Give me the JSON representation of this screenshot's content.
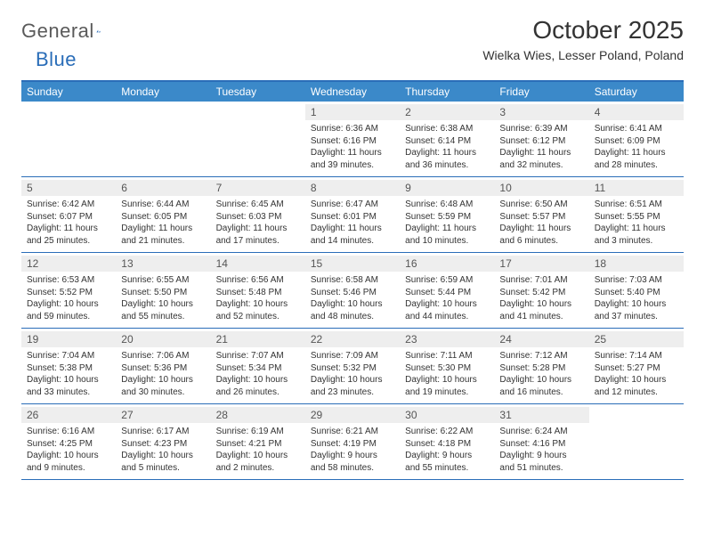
{
  "header": {
    "logo_general": "General",
    "logo_blue": "Blue",
    "title": "October 2025",
    "location": "Wielka Wies, Lesser Poland, Poland"
  },
  "colors": {
    "header_bar": "#3b89c9",
    "border": "#2a6db8",
    "daynum_bg": "#eeeeee",
    "text": "#333333",
    "background": "#ffffff"
  },
  "typography": {
    "title_fontsize": 28,
    "subtitle_fontsize": 14,
    "dayheader_fontsize": 12,
    "cell_fontsize": 10
  },
  "dayNames": [
    "Sunday",
    "Monday",
    "Tuesday",
    "Wednesday",
    "Thursday",
    "Friday",
    "Saturday"
  ],
  "weeks": [
    [
      {
        "n": "",
        "sr": "",
        "ss": "",
        "dl": ""
      },
      {
        "n": "",
        "sr": "",
        "ss": "",
        "dl": ""
      },
      {
        "n": "",
        "sr": "",
        "ss": "",
        "dl": ""
      },
      {
        "n": "1",
        "sr": "Sunrise: 6:36 AM",
        "ss": "Sunset: 6:16 PM",
        "dl": "Daylight: 11 hours and 39 minutes."
      },
      {
        "n": "2",
        "sr": "Sunrise: 6:38 AM",
        "ss": "Sunset: 6:14 PM",
        "dl": "Daylight: 11 hours and 36 minutes."
      },
      {
        "n": "3",
        "sr": "Sunrise: 6:39 AM",
        "ss": "Sunset: 6:12 PM",
        "dl": "Daylight: 11 hours and 32 minutes."
      },
      {
        "n": "4",
        "sr": "Sunrise: 6:41 AM",
        "ss": "Sunset: 6:09 PM",
        "dl": "Daylight: 11 hours and 28 minutes."
      }
    ],
    [
      {
        "n": "5",
        "sr": "Sunrise: 6:42 AM",
        "ss": "Sunset: 6:07 PM",
        "dl": "Daylight: 11 hours and 25 minutes."
      },
      {
        "n": "6",
        "sr": "Sunrise: 6:44 AM",
        "ss": "Sunset: 6:05 PM",
        "dl": "Daylight: 11 hours and 21 minutes."
      },
      {
        "n": "7",
        "sr": "Sunrise: 6:45 AM",
        "ss": "Sunset: 6:03 PM",
        "dl": "Daylight: 11 hours and 17 minutes."
      },
      {
        "n": "8",
        "sr": "Sunrise: 6:47 AM",
        "ss": "Sunset: 6:01 PM",
        "dl": "Daylight: 11 hours and 14 minutes."
      },
      {
        "n": "9",
        "sr": "Sunrise: 6:48 AM",
        "ss": "Sunset: 5:59 PM",
        "dl": "Daylight: 11 hours and 10 minutes."
      },
      {
        "n": "10",
        "sr": "Sunrise: 6:50 AM",
        "ss": "Sunset: 5:57 PM",
        "dl": "Daylight: 11 hours and 6 minutes."
      },
      {
        "n": "11",
        "sr": "Sunrise: 6:51 AM",
        "ss": "Sunset: 5:55 PM",
        "dl": "Daylight: 11 hours and 3 minutes."
      }
    ],
    [
      {
        "n": "12",
        "sr": "Sunrise: 6:53 AM",
        "ss": "Sunset: 5:52 PM",
        "dl": "Daylight: 10 hours and 59 minutes."
      },
      {
        "n": "13",
        "sr": "Sunrise: 6:55 AM",
        "ss": "Sunset: 5:50 PM",
        "dl": "Daylight: 10 hours and 55 minutes."
      },
      {
        "n": "14",
        "sr": "Sunrise: 6:56 AM",
        "ss": "Sunset: 5:48 PM",
        "dl": "Daylight: 10 hours and 52 minutes."
      },
      {
        "n": "15",
        "sr": "Sunrise: 6:58 AM",
        "ss": "Sunset: 5:46 PM",
        "dl": "Daylight: 10 hours and 48 minutes."
      },
      {
        "n": "16",
        "sr": "Sunrise: 6:59 AM",
        "ss": "Sunset: 5:44 PM",
        "dl": "Daylight: 10 hours and 44 minutes."
      },
      {
        "n": "17",
        "sr": "Sunrise: 7:01 AM",
        "ss": "Sunset: 5:42 PM",
        "dl": "Daylight: 10 hours and 41 minutes."
      },
      {
        "n": "18",
        "sr": "Sunrise: 7:03 AM",
        "ss": "Sunset: 5:40 PM",
        "dl": "Daylight: 10 hours and 37 minutes."
      }
    ],
    [
      {
        "n": "19",
        "sr": "Sunrise: 7:04 AM",
        "ss": "Sunset: 5:38 PM",
        "dl": "Daylight: 10 hours and 33 minutes."
      },
      {
        "n": "20",
        "sr": "Sunrise: 7:06 AM",
        "ss": "Sunset: 5:36 PM",
        "dl": "Daylight: 10 hours and 30 minutes."
      },
      {
        "n": "21",
        "sr": "Sunrise: 7:07 AM",
        "ss": "Sunset: 5:34 PM",
        "dl": "Daylight: 10 hours and 26 minutes."
      },
      {
        "n": "22",
        "sr": "Sunrise: 7:09 AM",
        "ss": "Sunset: 5:32 PM",
        "dl": "Daylight: 10 hours and 23 minutes."
      },
      {
        "n": "23",
        "sr": "Sunrise: 7:11 AM",
        "ss": "Sunset: 5:30 PM",
        "dl": "Daylight: 10 hours and 19 minutes."
      },
      {
        "n": "24",
        "sr": "Sunrise: 7:12 AM",
        "ss": "Sunset: 5:28 PM",
        "dl": "Daylight: 10 hours and 16 minutes."
      },
      {
        "n": "25",
        "sr": "Sunrise: 7:14 AM",
        "ss": "Sunset: 5:27 PM",
        "dl": "Daylight: 10 hours and 12 minutes."
      }
    ],
    [
      {
        "n": "26",
        "sr": "Sunrise: 6:16 AM",
        "ss": "Sunset: 4:25 PM",
        "dl": "Daylight: 10 hours and 9 minutes."
      },
      {
        "n": "27",
        "sr": "Sunrise: 6:17 AM",
        "ss": "Sunset: 4:23 PM",
        "dl": "Daylight: 10 hours and 5 minutes."
      },
      {
        "n": "28",
        "sr": "Sunrise: 6:19 AM",
        "ss": "Sunset: 4:21 PM",
        "dl": "Daylight: 10 hours and 2 minutes."
      },
      {
        "n": "29",
        "sr": "Sunrise: 6:21 AM",
        "ss": "Sunset: 4:19 PM",
        "dl": "Daylight: 9 hours and 58 minutes."
      },
      {
        "n": "30",
        "sr": "Sunrise: 6:22 AM",
        "ss": "Sunset: 4:18 PM",
        "dl": "Daylight: 9 hours and 55 minutes."
      },
      {
        "n": "31",
        "sr": "Sunrise: 6:24 AM",
        "ss": "Sunset: 4:16 PM",
        "dl": "Daylight: 9 hours and 51 minutes."
      },
      {
        "n": "",
        "sr": "",
        "ss": "",
        "dl": ""
      }
    ]
  ]
}
